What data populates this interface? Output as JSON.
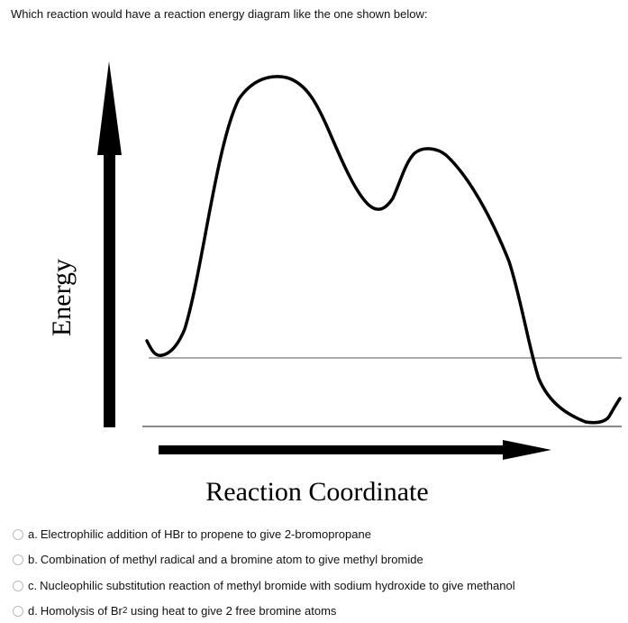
{
  "question": "Which reaction would have a reaction energy diagram like the one shown below:",
  "diagram": {
    "y_axis_label": "Energy",
    "x_axis_label": "Reaction Coordinate"
  },
  "options": [
    {
      "letter": "a.",
      "text": "Electrophilic addition of HBr to propene to give 2-bromopropane"
    },
    {
      "letter": "b.",
      "text": "Combination of methyl radical and a bromine atom to give methyl bromide"
    },
    {
      "letter": "c.",
      "text": "Nucleophilic substitution reaction of methyl bromide with sodium hydroxide to give methanol"
    },
    {
      "letter": "d.",
      "text": "Homolysis of Br",
      "subscript": "2",
      "text_after": " using heat to give 2 free bromine atoms"
    }
  ]
}
